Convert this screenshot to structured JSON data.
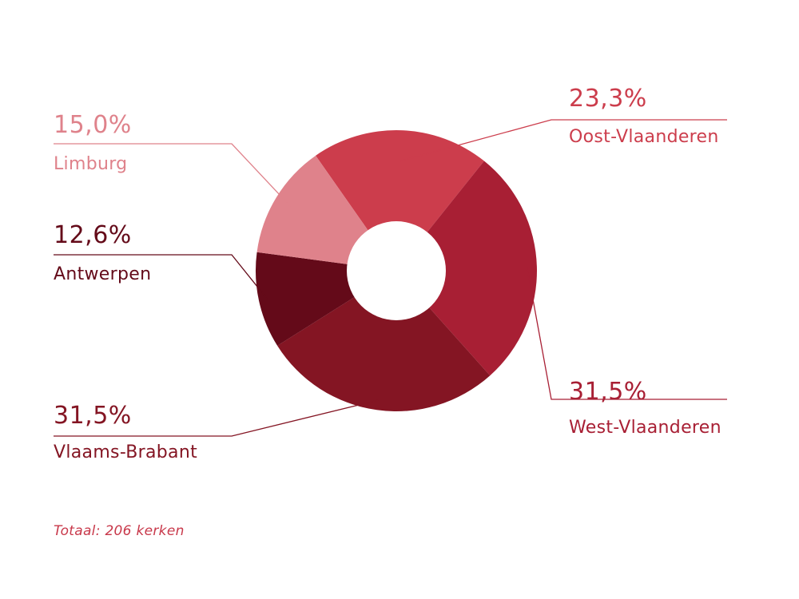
{
  "chart_data": {
    "type": "pie",
    "variant": "donut",
    "title": "",
    "slices": [
      {
        "label": "Oost-Vlaanderen",
        "value": 23.3,
        "value_text": "23,3%",
        "color": "#CC3D4C"
      },
      {
        "label": "West-Vlaanderen",
        "value": 31.5,
        "value_text": "31,5%",
        "color": "#A81F34"
      },
      {
        "label": "Vlaams-Brabant",
        "value": 31.5,
        "value_text": "31,5%",
        "color": "#841523"
      },
      {
        "label": "Antwerpen",
        "value": 12.6,
        "value_text": "12,6%",
        "color": "#640A19"
      },
      {
        "label": "Limburg",
        "value": 15.0,
        "value_text": "15,0%",
        "color": "#DF828B"
      }
    ],
    "legend": "none",
    "annotation": "Totaal: 206 kerken",
    "annotation_color": "#C8384A"
  }
}
